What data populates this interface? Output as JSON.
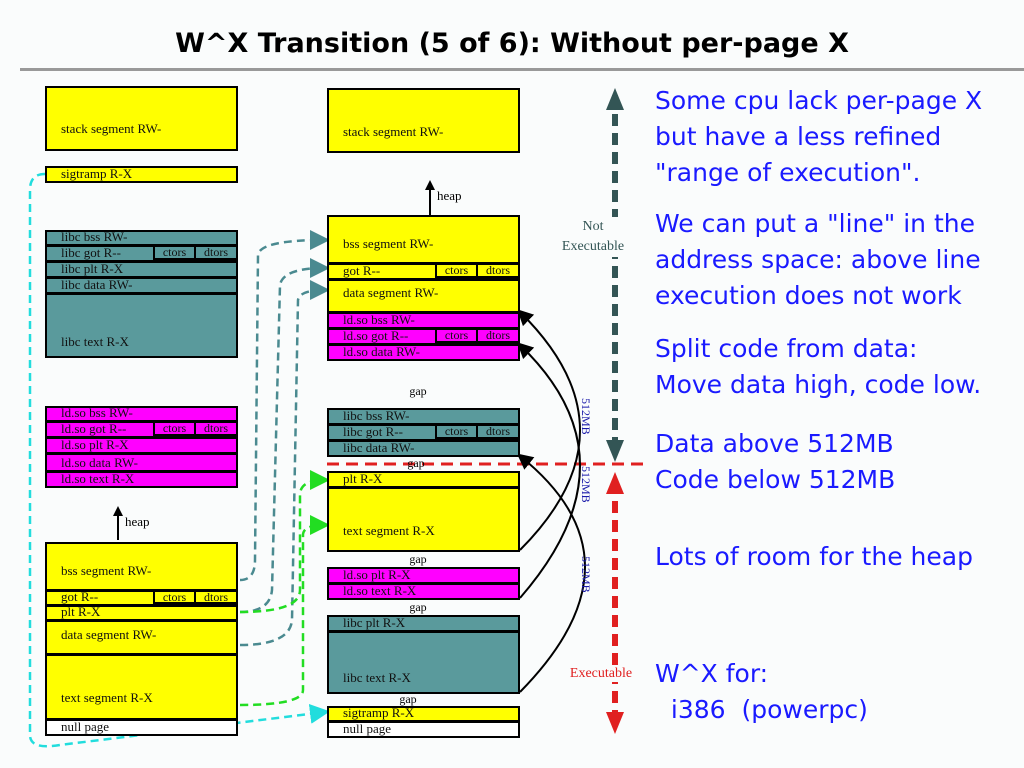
{
  "title": "W^X Transition (5 of 6): Without per-page X",
  "left": {
    "stack": "stack segment RW-",
    "sigtramp": "sigtramp R-X",
    "libc": [
      "libc bss RW-",
      "libc got R--",
      "libc plt R-X",
      "libc data RW-",
      "libc text R-X"
    ],
    "ldso": [
      "ld.so bss RW-",
      "ld.so got R--",
      "ld.so plt R-X",
      "ld.so data RW-",
      "ld.so text R-X"
    ],
    "heap": "heap",
    "exe": [
      "bss segment RW-",
      "got R--",
      "plt R-X",
      "data segment RW-",
      "text segment R-X",
      "null page"
    ]
  },
  "right": {
    "stack": "stack segment RW-",
    "heap": "heap",
    "exe": [
      "bss segment RW-",
      "got R--",
      "data segment RW-"
    ],
    "ldso": [
      "ld.so bss RW-",
      "ld.so got R--",
      "ld.so data RW-"
    ],
    "libc": [
      "libc bss RW-",
      "libc got R--",
      "libc data RW-"
    ],
    "text": [
      "plt R-X",
      "text segment R-X"
    ],
    "ldso_text": [
      "ld.so plt R-X",
      "ld.so text R-X"
    ],
    "libc_text": [
      "libc plt R-X",
      "libc text R-X"
    ],
    "low": [
      "sigtramp R-X",
      "null page"
    ]
  },
  "ctors": "ctors",
  "dtors": "dtors",
  "gap": "gap",
  "mb": "512MB",
  "not_exec": [
    "Not",
    "Executable"
  ],
  "exec": "Executable",
  "bullets": [
    [
      "Some cpu lack per-page X",
      "but have a less refined",
      "\"range of execution\"."
    ],
    [
      "We can put a \"line\" in the",
      "address space: above line",
      "execution does not work"
    ],
    [
      "Split code from data:",
      "Move data high, code low."
    ],
    [
      "Data above 512MB",
      "Code below 512MB"
    ],
    [
      "Lots of room for the heap"
    ],
    [
      "W^X for:",
      "  i386  (powerpc)"
    ]
  ],
  "colors": {
    "data": "#ffff00",
    "libc": "#5a9a9c",
    "ldso": "#ff00ff",
    "text": "#1a1aff",
    "line": "#e02020"
  }
}
